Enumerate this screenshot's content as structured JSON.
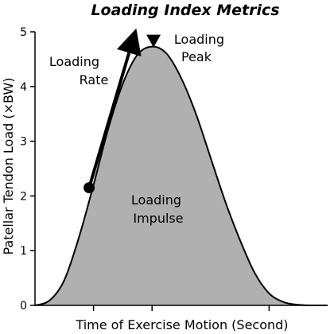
{
  "chart_data": {
    "type": "area",
    "title": "Loading Index Metrics",
    "xlabel": "Time of Exercise Motion (Second)",
    "ylabel": "Patellar Tendon Load (×BW)",
    "ylim": [
      0,
      5
    ],
    "yticks": [
      0,
      1,
      2,
      3,
      4,
      5
    ],
    "xlim": [
      0,
      10
    ],
    "xticks": [
      2,
      4,
      8
    ],
    "grid": false,
    "series": [
      {
        "x": [
          0,
          0.5,
          1,
          1.5,
          2,
          2.5,
          3,
          3.5,
          4,
          4.5,
          5,
          5.5,
          6,
          6.5,
          7,
          7.5,
          8,
          8.5,
          9,
          9.5,
          10
        ],
        "values": [
          0,
          0.09,
          0.46,
          1.24,
          2.2,
          3.22,
          4.05,
          4.58,
          4.73,
          4.6,
          4.15,
          3.5,
          2.7,
          1.9,
          1.2,
          0.6,
          0.22,
          0.06,
          0.01,
          0,
          0
        ]
      }
    ],
    "markers": {
      "rate_start": {
        "x": 1.85,
        "y": 2.15
      },
      "rate_arrow_end": {
        "x": 3.4,
        "y": 4.95
      },
      "peak": {
        "x": 4.05,
        "y": 4.73
      }
    },
    "annotations": {
      "rate_line1": "Loading",
      "rate_line2": "Rate",
      "peak_line1": "Loading",
      "peak_line2": "Peak",
      "impulse_line1": "Loading",
      "impulse_line2": "Impulse"
    },
    "colors": {
      "fill": "#b0b0b0",
      "line": "#000000"
    }
  }
}
